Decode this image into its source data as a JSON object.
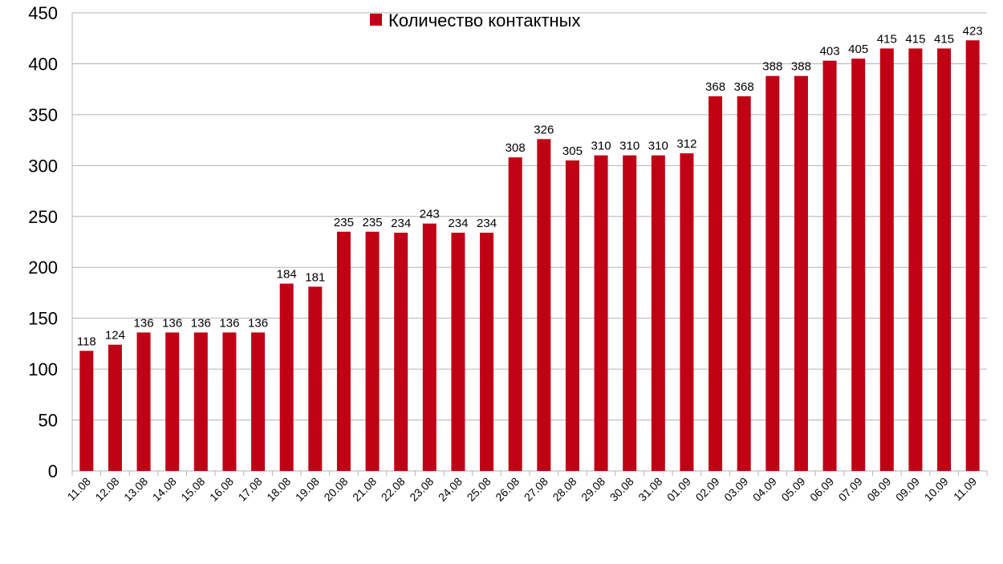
{
  "chart_data": {
    "type": "bar",
    "categories": [
      "11.08",
      "12.08",
      "13.08",
      "14.08",
      "15.08",
      "16.08",
      "17.08",
      "18.08",
      "19.08",
      "20.08",
      "21.08",
      "22.08",
      "23.08",
      "24.08",
      "25.08",
      "26.08",
      "27.08",
      "28.08",
      "29.08",
      "30.08",
      "31.08",
      "01.09",
      "02.09",
      "03.09",
      "04.09",
      "05.09",
      "06.09",
      "07.09",
      "08.09",
      "09.09",
      "10.09",
      "11.09"
    ],
    "series": [
      {
        "name": "Количество контактных",
        "values": [
          118,
          124,
          136,
          136,
          136,
          136,
          136,
          184,
          181,
          235,
          235,
          234,
          243,
          234,
          234,
          308,
          326,
          305,
          310,
          310,
          310,
          312,
          368,
          368,
          388,
          388,
          403,
          405,
          415,
          415,
          415,
          423
        ]
      }
    ],
    "title": "",
    "xlabel": "",
    "ylabel": "",
    "ylim": [
      0,
      450
    ],
    "yticks": [
      0,
      50,
      100,
      150,
      200,
      250,
      300,
      350,
      400,
      450
    ],
    "grid": true,
    "legend_position": "top-center",
    "bar_color": "#c00015",
    "data_labels": true
  }
}
